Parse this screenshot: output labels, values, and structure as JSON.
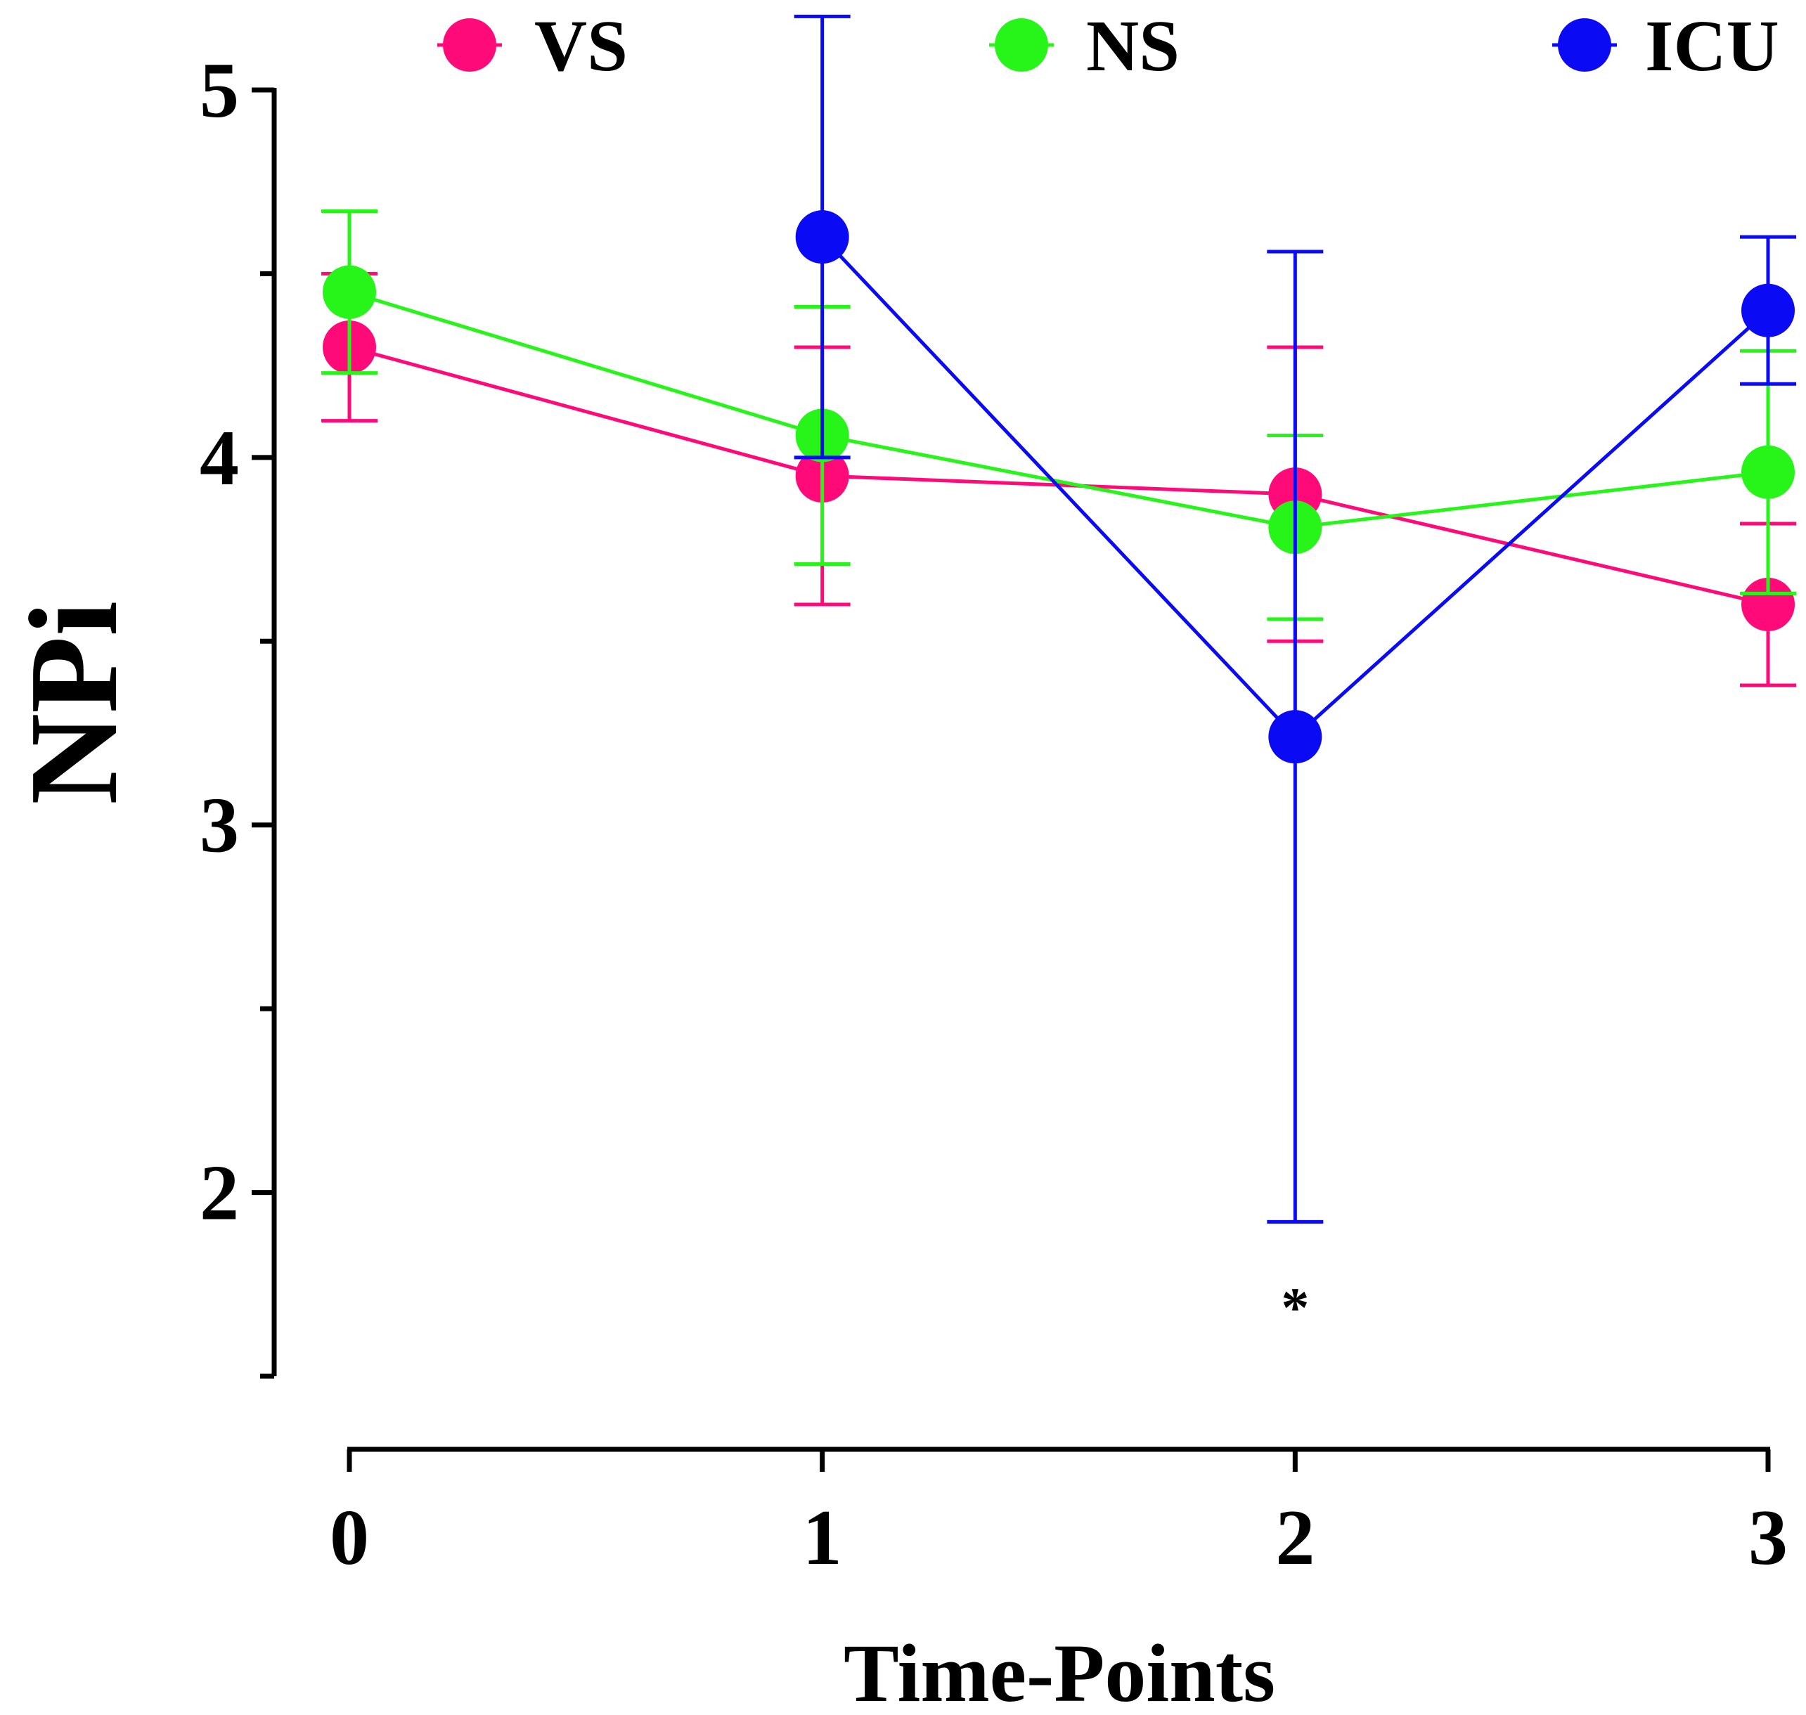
{
  "chart_data": {
    "type": "line",
    "title": "",
    "xlabel": "Time-Points",
    "ylabel": "NPi",
    "x": [
      0,
      1,
      2,
      3
    ],
    "x_tick_labels": [
      "0",
      "1",
      "2",
      "3"
    ],
    "xlim": [
      -0.15,
      3.05
    ],
    "ylim": [
      1.5,
      5
    ],
    "y_ticks": [
      5,
      4,
      3,
      2
    ],
    "y_tick_labels": [
      "5",
      "4",
      "3",
      "2"
    ],
    "y_minor_ticks": [
      4.5,
      3.5,
      2.5,
      1.5
    ],
    "legend_position": "top",
    "series": [
      {
        "name": "VS",
        "color": "#ff0a78",
        "values": [
          4.3,
          3.95,
          3.9,
          3.6
        ],
        "errors": [
          0.2,
          0.35,
          0.4,
          0.22
        ]
      },
      {
        "name": "NS",
        "color": "#27f51a",
        "values": [
          4.45,
          4.06,
          3.81,
          3.96
        ],
        "errors": [
          0.22,
          0.35,
          0.25,
          0.33
        ]
      },
      {
        "name": "ICU",
        "color": "#0a0af5",
        "values": [
          null,
          4.6,
          3.24,
          4.4
        ],
        "errors": [
          null,
          0.6,
          1.32,
          0.2
        ]
      }
    ],
    "annotations": [
      {
        "text": "*",
        "x": 2,
        "y": 1.73
      }
    ]
  }
}
